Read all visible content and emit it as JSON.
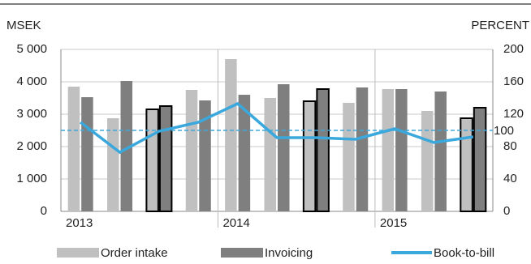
{
  "chart_data": {
    "type": "bar-line",
    "left_axis_label": "MSEK",
    "right_axis_label": "PERCENT",
    "categories": [
      "2013",
      null,
      null,
      null,
      "2014",
      null,
      null,
      null,
      "2015",
      null,
      null
    ],
    "series": [
      {
        "name": "Order intake",
        "color": "#c0c0c0",
        "values": [
          3850,
          2875,
          3150,
          3750,
          4700,
          3500,
          3400,
          3350,
          3775,
          3100,
          2875
        ]
      },
      {
        "name": "Invoicing",
        "color": "#7f7f7f",
        "values": [
          3525,
          4025,
          3250,
          3425,
          3600,
          3925,
          3775,
          3825,
          3775,
          3700,
          3200
        ]
      },
      {
        "name": "Book-to-bill",
        "color": "#3aa8dc",
        "axis": "y2",
        "values": [
          110,
          73,
          99,
          110,
          133,
          91,
          91,
          89,
          102,
          85,
          92
        ]
      }
    ],
    "outlined_categories": [
      2,
      6,
      10
    ],
    "reference_line": {
      "value": 100,
      "axis": "y2",
      "color": "#3aa8dc"
    },
    "ylim": [
      0,
      5000
    ],
    "yticks": [
      0,
      {
        "value": 1000,
        "label": "1 000"
      },
      {
        "value": 2000,
        "label": "2 000"
      },
      {
        "value": 3000,
        "label": "3 000"
      },
      {
        "value": 4000,
        "label": "4 000"
      },
      {
        "value": 5000,
        "label": "5 000"
      }
    ],
    "y2lim": [
      0,
      200
    ],
    "y2ticks": [
      0,
      40,
      80,
      120,
      160,
      200
    ],
    "grid": true
  }
}
